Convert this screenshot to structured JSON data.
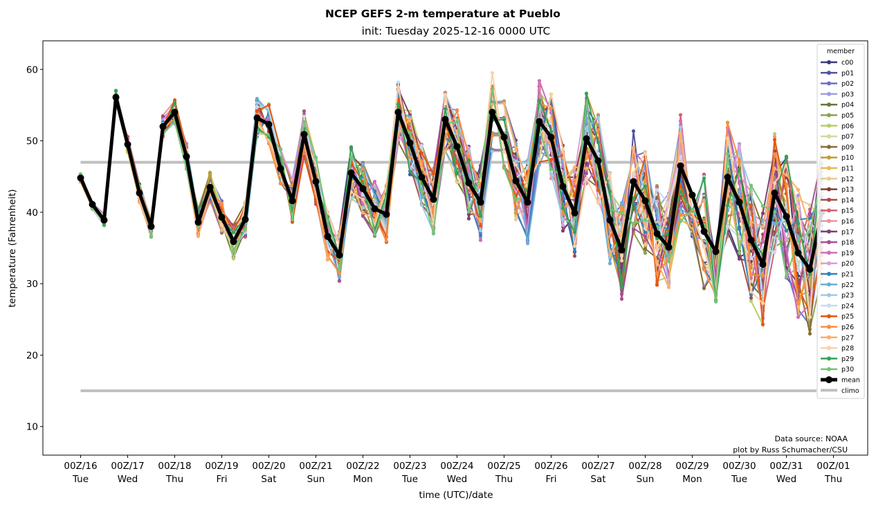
{
  "chart_data": {
    "type": "line",
    "title": "NCEP GEFS 2-m temperature at Pueblo",
    "subtitle": "init: Tuesday 2025-12-16 0000 UTC",
    "xlabel": "time (UTC)/date",
    "ylabel": "temperature (Fahrenheit)",
    "ylim": [
      6,
      64
    ],
    "yticks": [
      10,
      20,
      30,
      40,
      50,
      60
    ],
    "xlim_hours": [
      -36,
      396
    ],
    "xticks": [
      {
        "hour": 0,
        "line1": "00Z/16",
        "line2": "Tue"
      },
      {
        "hour": 24,
        "line1": "00Z/17",
        "line2": "Wed"
      },
      {
        "hour": 48,
        "line1": "00Z/18",
        "line2": "Thu"
      },
      {
        "hour": 72,
        "line1": "00Z/19",
        "line2": "Fri"
      },
      {
        "hour": 96,
        "line1": "00Z/20",
        "line2": "Sat"
      },
      {
        "hour": 120,
        "line1": "00Z/21",
        "line2": "Sun"
      },
      {
        "hour": 144,
        "line1": "00Z/22",
        "line2": "Mon"
      },
      {
        "hour": 168,
        "line1": "00Z/23",
        "line2": "Tue"
      },
      {
        "hour": 192,
        "line1": "00Z/24",
        "line2": "Wed"
      },
      {
        "hour": 216,
        "line1": "00Z/25",
        "line2": "Thu"
      },
      {
        "hour": 240,
        "line1": "00Z/26",
        "line2": "Fri"
      },
      {
        "hour": 264,
        "line1": "00Z/27",
        "line2": "Sat"
      },
      {
        "hour": 288,
        "line1": "00Z/28",
        "line2": "Sun"
      },
      {
        "hour": 312,
        "line1": "00Z/29",
        "line2": "Mon"
      },
      {
        "hour": 336,
        "line1": "00Z/30",
        "line2": "Tue"
      },
      {
        "hour": 360,
        "line1": "00Z/31",
        "line2": "Wed"
      },
      {
        "hour": 384,
        "line1": "00Z/01",
        "line2": "Thu"
      }
    ],
    "time_step_hours": 6,
    "legend": {
      "title": "member",
      "placement": "upper-right"
    },
    "mean": {
      "name": "mean",
      "color": "#000000",
      "values": [
        44.8,
        41.1,
        38.9,
        56.1,
        49.5,
        42.7,
        38.0,
        52.0,
        54.0,
        47.8,
        38.6,
        43.5,
        39.3,
        35.9,
        39.0,
        53.2,
        52.3,
        46.1,
        41.6,
        50.9,
        44.3,
        36.6,
        34.0,
        45.5,
        43.3,
        40.5,
        39.7,
        54.0,
        49.7,
        44.9,
        41.8,
        53.0,
        49.2,
        44.1,
        41.4,
        54.0,
        50.5,
        44.4,
        41.4,
        52.7,
        50.5,
        43.6,
        39.9,
        50.3,
        47.2,
        38.9,
        34.7,
        44.3,
        41.6,
        37.0,
        35.1,
        46.5,
        42.4,
        37.3,
        34.5,
        44.9,
        41.4,
        36.1,
        32.7,
        42.7,
        39.4,
        34.3,
        32.0,
        40.0
      ]
    },
    "climo": {
      "name": "climo",
      "color": "#c0c0c0",
      "high": 47.0,
      "low": 15.0
    },
    "members": [
      {
        "name": "c00",
        "color": "#393b79"
      },
      {
        "name": "p01",
        "color": "#5254a3"
      },
      {
        "name": "p02",
        "color": "#6b6ecf"
      },
      {
        "name": "p03",
        "color": "#9c9ede"
      },
      {
        "name": "p04",
        "color": "#637939"
      },
      {
        "name": "p05",
        "color": "#8ca252"
      },
      {
        "name": "p06",
        "color": "#b5cf6b"
      },
      {
        "name": "p07",
        "color": "#cedb9c"
      },
      {
        "name": "p09",
        "color": "#8c6d31"
      },
      {
        "name": "p10",
        "color": "#bd9e39"
      },
      {
        "name": "p11",
        "color": "#e7ba52"
      },
      {
        "name": "p12",
        "color": "#e7cb94"
      },
      {
        "name": "p13",
        "color": "#843c39"
      },
      {
        "name": "p14",
        "color": "#ad494a"
      },
      {
        "name": "p15",
        "color": "#d6616b"
      },
      {
        "name": "p16",
        "color": "#e7969c"
      },
      {
        "name": "p17",
        "color": "#7b4173"
      },
      {
        "name": "p18",
        "color": "#a55194"
      },
      {
        "name": "p19",
        "color": "#ce6dbd"
      },
      {
        "name": "p20",
        "color": "#de9ed6"
      },
      {
        "name": "p21",
        "color": "#3182bd"
      },
      {
        "name": "p22",
        "color": "#6baed6"
      },
      {
        "name": "p23",
        "color": "#9ecae1"
      },
      {
        "name": "p24",
        "color": "#c6dbef"
      },
      {
        "name": "p25",
        "color": "#e6550d"
      },
      {
        "name": "p26",
        "color": "#fd8d3c"
      },
      {
        "name": "p27",
        "color": "#fdae6b"
      },
      {
        "name": "p28",
        "color": "#fdd0a2"
      },
      {
        "name": "p29",
        "color": "#31a354"
      },
      {
        "name": "p30",
        "color": "#74c476"
      }
    ],
    "annotations": [
      "Data source: NOAA",
      "plot by Russ Schumacher/CSU"
    ]
  }
}
